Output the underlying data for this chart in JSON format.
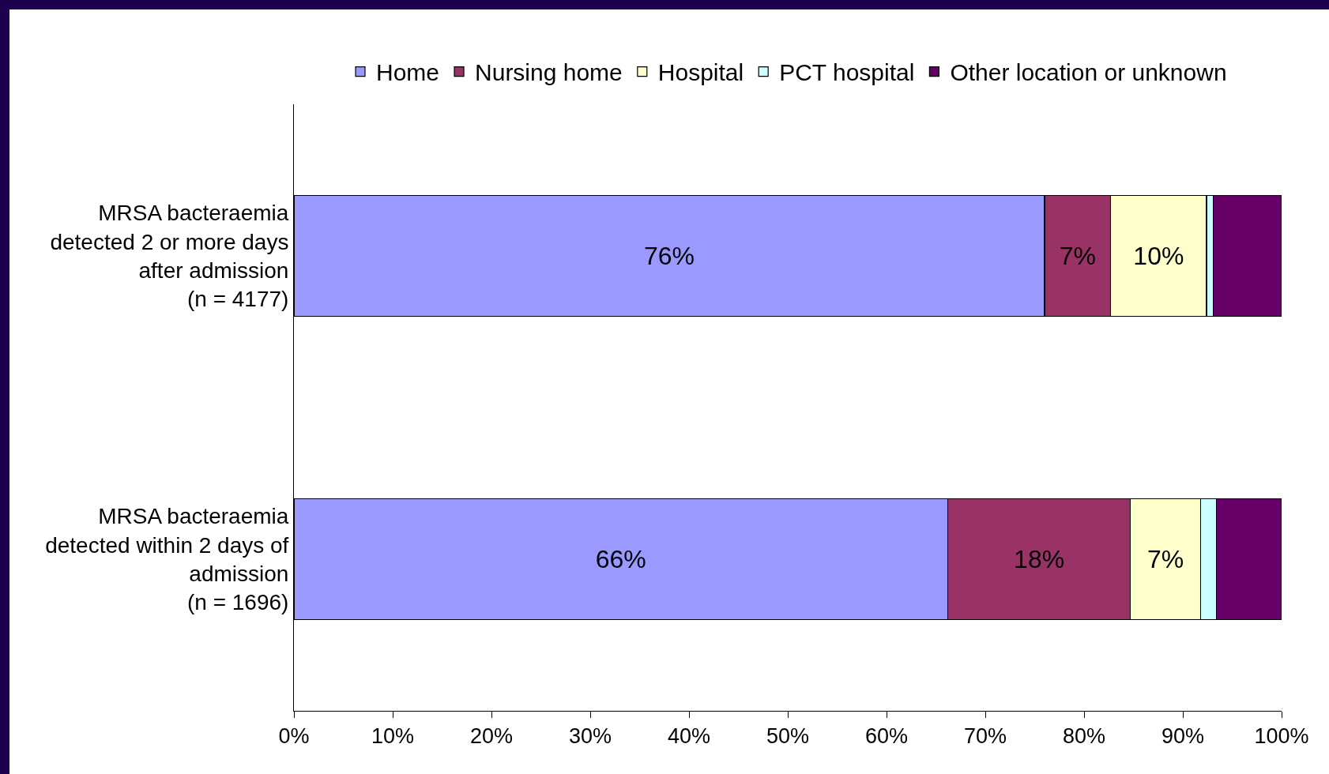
{
  "chart_data": {
    "type": "bar",
    "orientation": "horizontal",
    "stacked": true,
    "categories": [
      "MRSA bacteraemia\ndetected 2 or more days\nafter admission\n(n = 4177)",
      "MRSA bacteraemia\ndetected within 2 days of\nadmission\n(n = 1696)"
    ],
    "series": [
      {
        "name": "Home",
        "color": "#9999ff",
        "values": [
          76,
          66.2
        ],
        "value_labels": [
          "76%",
          "66%"
        ]
      },
      {
        "name": "Nursing home",
        "color": "#993366",
        "values": [
          6.7,
          18.5
        ],
        "value_labels": [
          "7%",
          "18%"
        ]
      },
      {
        "name": "Hospital",
        "color": "#ffffcc",
        "values": [
          9.7,
          7.1
        ],
        "value_labels": [
          "10%",
          "7%"
        ]
      },
      {
        "name": "PCT hospital",
        "color": "#ccffff",
        "values": [
          0.7,
          1.6
        ],
        "value_labels": [
          null,
          null
        ]
      },
      {
        "name": "Other location or unknown",
        "color": "#660066",
        "values": [
          6.9,
          6.6
        ],
        "value_labels": [
          null,
          null
        ]
      }
    ],
    "xlim": [
      0,
      100
    ],
    "xticks": [
      {
        "value": 0,
        "label": "0%"
      },
      {
        "value": 10,
        "label": "10%"
      },
      {
        "value": 20,
        "label": "20%"
      },
      {
        "value": 30,
        "label": "30%"
      },
      {
        "value": 40,
        "label": "40%"
      },
      {
        "value": 50,
        "label": "50%"
      },
      {
        "value": 60,
        "label": "60%"
      },
      {
        "value": 70,
        "label": "70%"
      },
      {
        "value": 80,
        "label": "80%"
      },
      {
        "value": 90,
        "label": "90%"
      },
      {
        "value": 100,
        "label": "100%"
      }
    ],
    "grid": false,
    "legend": "top"
  }
}
